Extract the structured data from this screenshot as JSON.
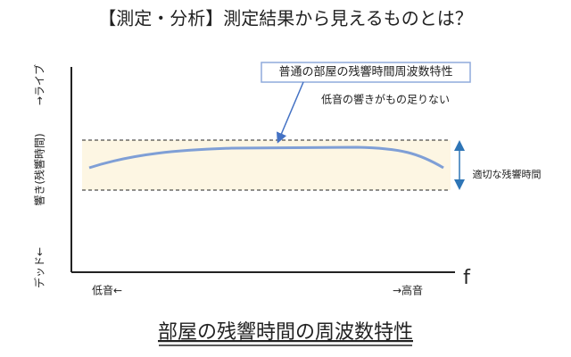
{
  "header": {
    "title": "【測定・分析】測定結果から見えるものとは？"
  },
  "axes": {
    "y_label_top": "→ライブ",
    "y_label_middle": "響き(残響時間)",
    "y_label_bottom": "デッド←",
    "x_label": "f",
    "x_left": "低音←",
    "x_right": "→高音"
  },
  "callout": {
    "label": "普通の部屋の残響時間周波数特性",
    "note": "低音の響きがもの足りない"
  },
  "band": {
    "label": "適切な残響時間"
  },
  "footer": {
    "caption": "部屋の残響時間の周波数特性"
  }
}
